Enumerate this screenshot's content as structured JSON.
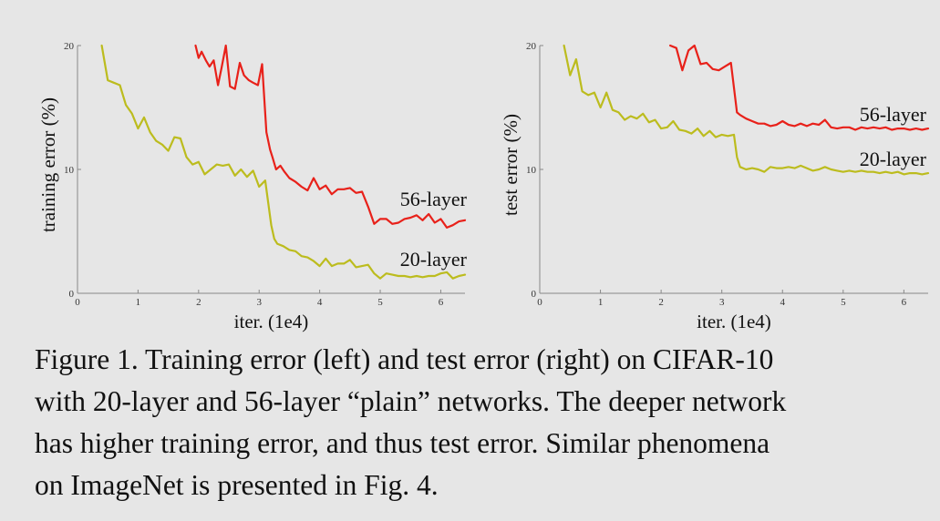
{
  "chart_data": [
    {
      "type": "line",
      "xlabel": "iter. (1e4)",
      "ylabel": "training error (%)",
      "xlim": [
        0,
        6.4
      ],
      "ylim": [
        0,
        20
      ],
      "xticks": [
        0,
        1,
        2,
        3,
        4,
        5,
        6
      ],
      "yticks": [
        0,
        10,
        20
      ],
      "grid": false,
      "series": [
        {
          "name": "56-layer",
          "color": "#e8211a",
          "x": [
            1.95,
            2.0,
            2.05,
            2.12,
            2.18,
            2.25,
            2.32,
            2.38,
            2.45,
            2.52,
            2.6,
            2.68,
            2.75,
            2.83,
            2.9,
            2.98,
            3.05,
            3.12,
            3.18,
            3.22,
            3.28,
            3.35,
            3.42,
            3.5,
            3.6,
            3.7,
            3.8,
            3.9,
            4.0,
            4.1,
            4.2,
            4.3,
            4.4,
            4.5,
            4.6,
            4.7,
            4.8,
            4.9,
            5.0,
            5.1,
            5.2,
            5.3,
            5.4,
            5.5,
            5.6,
            5.7,
            5.8,
            5.9,
            6.0,
            6.1,
            6.2,
            6.3,
            6.4
          ],
          "y": [
            20.0,
            19.0,
            19.5,
            18.8,
            18.3,
            18.8,
            16.8,
            18.2,
            20.0,
            16.7,
            16.5,
            18.6,
            17.6,
            17.2,
            17.0,
            16.8,
            18.5,
            13.0,
            11.6,
            11.0,
            10.0,
            10.3,
            9.8,
            9.3,
            9.0,
            8.6,
            8.3,
            9.3,
            8.4,
            8.7,
            8.0,
            8.4,
            8.4,
            8.5,
            8.1,
            8.2,
            7.0,
            5.6,
            6.0,
            6.0,
            5.6,
            5.7,
            6.0,
            6.1,
            6.3,
            5.9,
            6.4,
            5.7,
            6.0,
            5.3,
            5.5,
            5.8,
            5.9
          ]
        },
        {
          "name": "20-layer",
          "color": "#bcbc1e",
          "x": [
            0.4,
            0.5,
            0.6,
            0.7,
            0.8,
            0.9,
            1.0,
            1.1,
            1.2,
            1.3,
            1.4,
            1.5,
            1.6,
            1.7,
            1.8,
            1.9,
            2.0,
            2.1,
            2.2,
            2.3,
            2.4,
            2.5,
            2.6,
            2.7,
            2.8,
            2.9,
            3.0,
            3.1,
            3.2,
            3.25,
            3.3,
            3.4,
            3.5,
            3.6,
            3.7,
            3.8,
            3.9,
            4.0,
            4.1,
            4.2,
            4.3,
            4.4,
            4.5,
            4.6,
            4.7,
            4.8,
            4.9,
            5.0,
            5.1,
            5.2,
            5.3,
            5.4,
            5.5,
            5.6,
            5.7,
            5.8,
            5.9,
            6.0,
            6.1,
            6.2,
            6.3,
            6.4
          ],
          "y": [
            20.0,
            17.2,
            17.0,
            16.8,
            15.2,
            14.5,
            13.3,
            14.2,
            13.0,
            12.3,
            12.0,
            11.5,
            12.6,
            12.5,
            11.0,
            10.4,
            10.6,
            9.6,
            10.0,
            10.4,
            10.3,
            10.4,
            9.5,
            10.0,
            9.4,
            9.9,
            8.6,
            9.1,
            5.5,
            4.4,
            4.0,
            3.8,
            3.5,
            3.4,
            3.0,
            2.9,
            2.6,
            2.2,
            2.8,
            2.2,
            2.4,
            2.4,
            2.7,
            2.1,
            2.2,
            2.3,
            1.6,
            1.2,
            1.6,
            1.5,
            1.4,
            1.4,
            1.3,
            1.4,
            1.3,
            1.4,
            1.4,
            1.6,
            1.7,
            1.2,
            1.4,
            1.5
          ]
        }
      ]
    },
    {
      "type": "line",
      "xlabel": "iter. (1e4)",
      "ylabel": "test error (%)",
      "xlim": [
        0,
        6.4
      ],
      "ylim": [
        0,
        20
      ],
      "xticks": [
        0,
        1,
        2,
        3,
        4,
        5,
        6
      ],
      "yticks": [
        0,
        10,
        20
      ],
      "grid": false,
      "series": [
        {
          "name": "56-layer",
          "color": "#e8211a",
          "x": [
            2.15,
            2.25,
            2.35,
            2.45,
            2.55,
            2.65,
            2.75,
            2.85,
            2.95,
            3.05,
            3.15,
            3.25,
            3.3,
            3.4,
            3.5,
            3.6,
            3.7,
            3.8,
            3.9,
            4.0,
            4.1,
            4.2,
            4.3,
            4.4,
            4.5,
            4.6,
            4.7,
            4.8,
            4.9,
            5.0,
            5.1,
            5.2,
            5.3,
            5.4,
            5.5,
            5.6,
            5.7,
            5.8,
            5.9,
            6.0,
            6.1,
            6.2,
            6.3,
            6.4
          ],
          "y": [
            20.0,
            19.8,
            18.0,
            19.6,
            20.0,
            18.5,
            18.6,
            18.1,
            18.0,
            18.3,
            18.6,
            14.6,
            14.4,
            14.1,
            13.9,
            13.7,
            13.7,
            13.5,
            13.6,
            13.9,
            13.6,
            13.5,
            13.7,
            13.5,
            13.7,
            13.6,
            14.0,
            13.4,
            13.3,
            13.4,
            13.4,
            13.2,
            13.4,
            13.3,
            13.4,
            13.3,
            13.4,
            13.2,
            13.3,
            13.3,
            13.2,
            13.3,
            13.2,
            13.3
          ]
        },
        {
          "name": "20-layer",
          "color": "#bcbc1e",
          "x": [
            0.4,
            0.5,
            0.6,
            0.7,
            0.8,
            0.9,
            1.0,
            1.1,
            1.2,
            1.3,
            1.4,
            1.5,
            1.6,
            1.7,
            1.8,
            1.9,
            2.0,
            2.1,
            2.2,
            2.3,
            2.4,
            2.5,
            2.6,
            2.7,
            2.8,
            2.9,
            3.0,
            3.1,
            3.2,
            3.25,
            3.3,
            3.4,
            3.5,
            3.6,
            3.7,
            3.8,
            3.9,
            4.0,
            4.1,
            4.2,
            4.3,
            4.4,
            4.5,
            4.6,
            4.7,
            4.8,
            4.9,
            5.0,
            5.1,
            5.2,
            5.3,
            5.4,
            5.5,
            5.6,
            5.7,
            5.8,
            5.9,
            6.0,
            6.1,
            6.2,
            6.3,
            6.4
          ],
          "y": [
            20.0,
            17.6,
            18.9,
            16.3,
            16.0,
            16.2,
            15.0,
            16.2,
            14.8,
            14.6,
            14.0,
            14.3,
            14.1,
            14.5,
            13.8,
            14.0,
            13.3,
            13.4,
            13.9,
            13.2,
            13.1,
            12.9,
            13.3,
            12.7,
            13.1,
            12.6,
            12.8,
            12.7,
            12.8,
            11.0,
            10.2,
            10.0,
            10.1,
            10.0,
            9.8,
            10.2,
            10.1,
            10.1,
            10.2,
            10.1,
            10.3,
            10.1,
            9.9,
            10.0,
            10.2,
            10.0,
            9.9,
            9.8,
            9.9,
            9.8,
            9.9,
            9.8,
            9.8,
            9.7,
            9.8,
            9.7,
            9.8,
            9.6,
            9.7,
            9.7,
            9.6,
            9.7
          ]
        }
      ]
    }
  ],
  "caption": {
    "line1": "Figure 1. Training error (left) and test error (right) on CIFAR-10",
    "line2": "with 20-layer and 56-layer “plain” networks. The deeper network",
    "line3": "has higher training error, and thus test error.  Similar phenomena",
    "line4": "on ImageNet is presented in Fig. 4."
  }
}
